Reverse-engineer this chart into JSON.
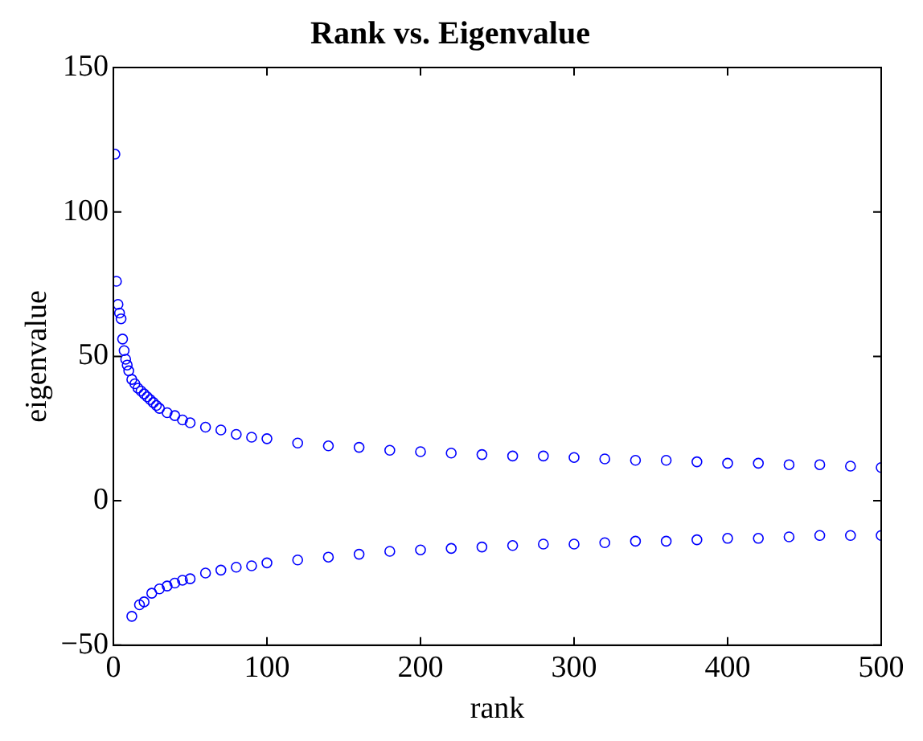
{
  "chart_data": {
    "type": "scatter",
    "title": "Rank vs. Eigenvalue",
    "xlabel": "rank",
    "ylabel": "eigenvalue",
    "xlim": [
      0,
      500
    ],
    "xticks": [
      0,
      100,
      200,
      300,
      400,
      500
    ],
    "ylim": [
      -50,
      150
    ],
    "yticks": [
      -50,
      0,
      50,
      100,
      150
    ],
    "grid": false,
    "legend": false,
    "marker": "circle",
    "series": [
      {
        "color": "#0000ff",
        "x": [
          1,
          2,
          3,
          4,
          5,
          6,
          7,
          8,
          9,
          10,
          12,
          14,
          16,
          18,
          20,
          22,
          24,
          26,
          28,
          30,
          35,
          40,
          45,
          50,
          60,
          70,
          80,
          90,
          100,
          120,
          140,
          160,
          180,
          200,
          220,
          240,
          260,
          280,
          300,
          320,
          340,
          360,
          380,
          400,
          420,
          440,
          460,
          480,
          500
        ],
        "values": [
          120,
          76,
          68,
          65,
          63,
          56,
          52,
          49,
          47,
          45,
          42,
          40.5,
          39,
          38,
          37,
          36,
          35,
          34,
          33,
          32,
          30.5,
          29.5,
          28,
          27,
          25.5,
          24.5,
          23,
          22,
          21.5,
          20,
          19,
          18.5,
          17.5,
          17,
          16.5,
          16,
          15.5,
          15.5,
          15,
          14.5,
          14,
          14,
          13.5,
          13,
          13,
          12.5,
          12.5,
          12,
          11.5
        ]
      },
      {
        "color": "#0000ff",
        "x": [
          12,
          17,
          20,
          25,
          30,
          35,
          40,
          45,
          50,
          60,
          70,
          80,
          90,
          100,
          120,
          140,
          160,
          180,
          200,
          220,
          240,
          260,
          280,
          300,
          320,
          340,
          360,
          380,
          400,
          420,
          440,
          460,
          480,
          500
        ],
        "values": [
          -40,
          -36,
          -35,
          -32,
          -30.5,
          -29.5,
          -28.5,
          -27.5,
          -27,
          -25,
          -24,
          -23,
          -22.5,
          -21.5,
          -20.5,
          -19.5,
          -18.5,
          -17.5,
          -17,
          -16.5,
          -16,
          -15.5,
          -15,
          -15,
          -14.5,
          -14,
          -14,
          -13.5,
          -13,
          -13,
          -12.5,
          -12,
          -12,
          -12
        ]
      }
    ]
  }
}
